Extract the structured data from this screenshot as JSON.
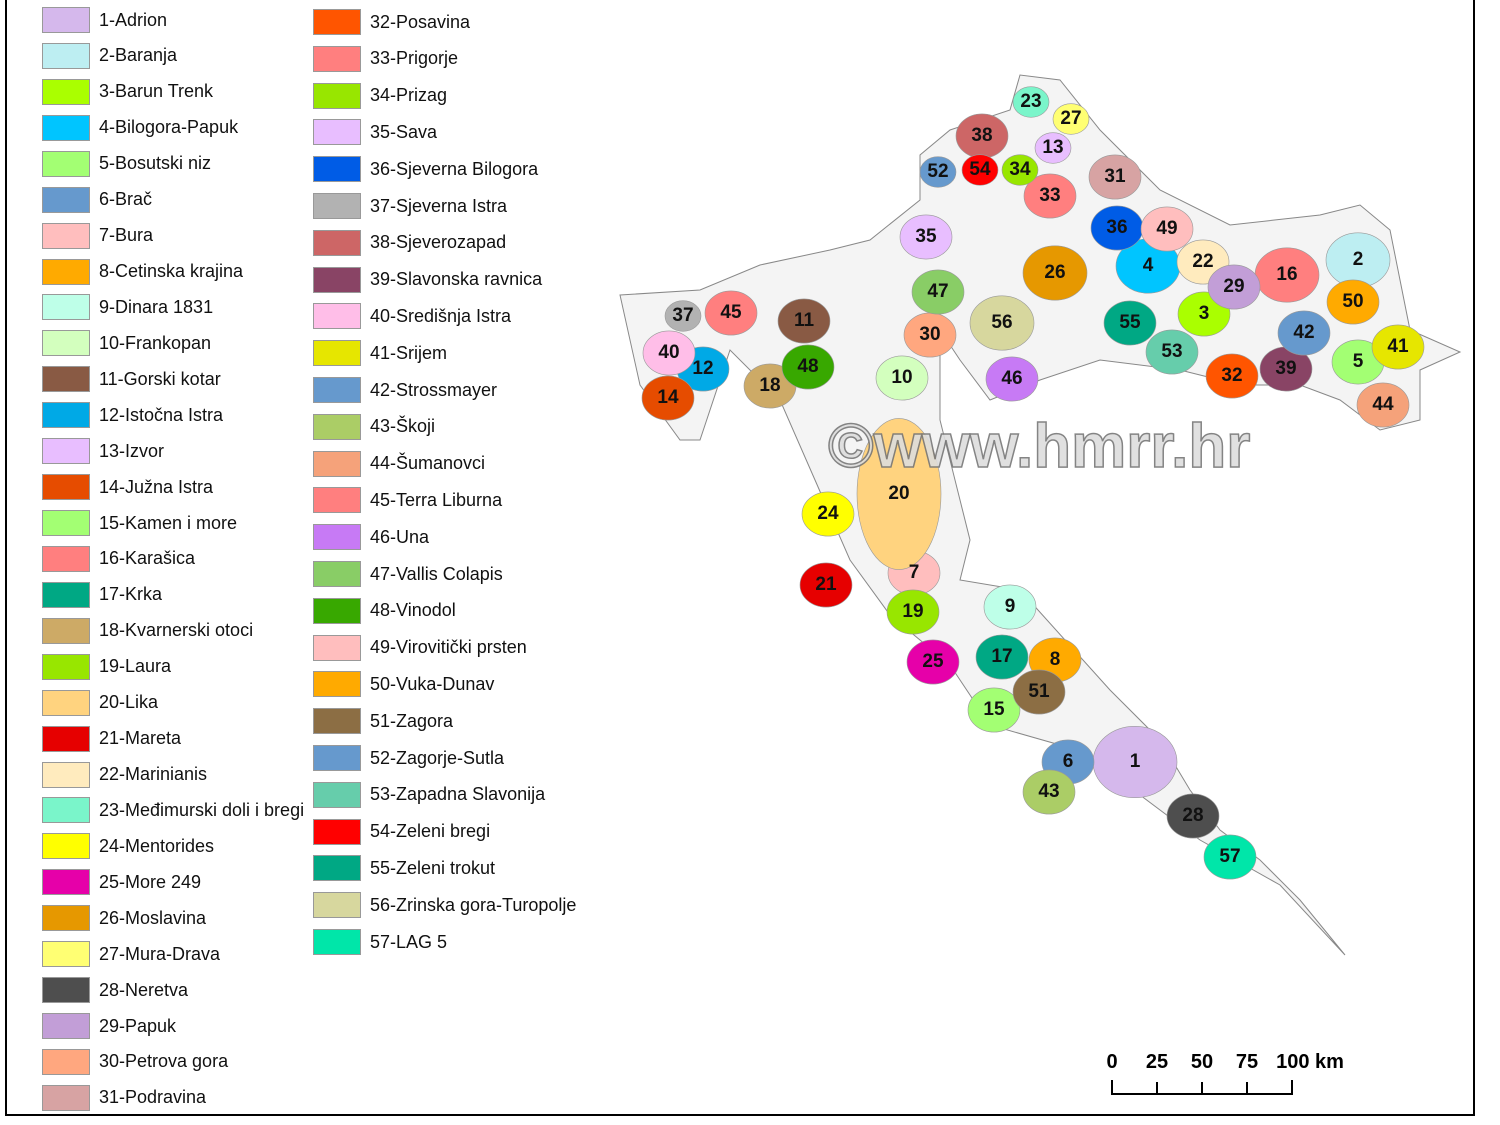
{
  "legend": [
    {
      "label": "1-Adrion",
      "color": "#d5b8ec"
    },
    {
      "label": "2-Baranja",
      "color": "#bdeef2"
    },
    {
      "label": "3-Barun Trenk",
      "color": "#aaff00"
    },
    {
      "label": "4-Bilogora-Papuk",
      "color": "#00c5ff"
    },
    {
      "label": "5-Bosutski niz",
      "color": "#a3ff73"
    },
    {
      "label": "6-Brač",
      "color": "#6699cd"
    },
    {
      "label": "7-Bura",
      "color": "#ffbebe"
    },
    {
      "label": "8-Cetinska krajina",
      "color": "#ffaa00"
    },
    {
      "label": "9-Dinara 1831",
      "color": "#beffe8"
    },
    {
      "label": "10-Frankopan",
      "color": "#d3ffbe"
    },
    {
      "label": "11-Gorski kotar",
      "color": "#895a44"
    },
    {
      "label": "12-Istočna Istra",
      "color": "#00a9e6"
    },
    {
      "label": "13-Izvor",
      "color": "#e8beff"
    },
    {
      "label": "14-Južna Istra",
      "color": "#e64c00"
    },
    {
      "label": "15-Kamen i more",
      "color": "#a3ff73"
    },
    {
      "label": "16-Karašica",
      "color": "#ff7f7f"
    },
    {
      "label": "17-Krka",
      "color": "#00a884"
    },
    {
      "label": "18-Kvarnerski otoci",
      "color": "#cdaa66"
    },
    {
      "label": "19-Laura",
      "color": "#98e600"
    },
    {
      "label": "20-Lika",
      "color": "#ffd37f"
    },
    {
      "label": "21-Mareta",
      "color": "#e60000"
    },
    {
      "label": "22-Marinianis",
      "color": "#ffebbe"
    },
    {
      "label": "23-Međimurski doli i bregi",
      "color": "#7af5ca"
    },
    {
      "label": "24-Mentorides",
      "color": "#ffff00"
    },
    {
      "label": "25-More 249",
      "color": "#e600a9"
    },
    {
      "label": "26-Moslavina",
      "color": "#e69800"
    },
    {
      "label": "27-Mura-Drava",
      "color": "#ffff73"
    },
    {
      "label": "28-Neretva",
      "color": "#4e4e4e"
    },
    {
      "label": "29-Papuk",
      "color": "#c29ed7"
    },
    {
      "label": "30-Petrova gora",
      "color": "#ffa77f"
    },
    {
      "label": "31-Podravina",
      "color": "#d7a3a3"
    },
    {
      "label": "32-Posavina",
      "color": "#ff5500"
    },
    {
      "label": "33-Prigorje",
      "color": "#ff7f7f"
    },
    {
      "label": "34-Prizag",
      "color": "#98e600"
    },
    {
      "label": "35-Sava",
      "color": "#e8beff"
    },
    {
      "label": "36-Sjeverna Bilogora",
      "color": "#005ce6"
    },
    {
      "label": "37-Sjeverna Istra",
      "color": "#b2b2b2"
    },
    {
      "label": "38-Sjeverozapad",
      "color": "#cd6666"
    },
    {
      "label": "39-Slavonska ravnica",
      "color": "#894465"
    },
    {
      "label": "40-Središnja Istra",
      "color": "#ffbee8"
    },
    {
      "label": "41-Srijem",
      "color": "#e6e600"
    },
    {
      "label": "42-Strossmayer",
      "color": "#6699cd"
    },
    {
      "label": "43-Škoji",
      "color": "#abcd66"
    },
    {
      "label": "44-Šumanovci",
      "color": "#f5a27a"
    },
    {
      "label": "45-Terra Liburna",
      "color": "#ff7f7f"
    },
    {
      "label": "46-Una",
      "color": "#c77af5"
    },
    {
      "label": "47-Vallis Colapis",
      "color": "#89cd66"
    },
    {
      "label": "48-Vinodol",
      "color": "#38a800"
    },
    {
      "label": "49-Virovitički prsten",
      "color": "#ffbebe"
    },
    {
      "label": "50-Vuka-Dunav",
      "color": "#ffaa00"
    },
    {
      "label": "51-Zagora",
      "color": "#8c6e44"
    },
    {
      "label": "52-Zagorje-Sutla",
      "color": "#6699cd"
    },
    {
      "label": "53-Zapadna Slavonija",
      "color": "#66cdab"
    },
    {
      "label": "54-Zeleni bregi",
      "color": "#ff0000"
    },
    {
      "label": "55-Zeleni trokut",
      "color": "#00a884"
    },
    {
      "label": "56-Zrinska gora-Turopolje",
      "color": "#d7d79e"
    },
    {
      "label": "57-LAG 5",
      "color": "#00e6a9"
    }
  ],
  "map_labels": [
    "1",
    "2",
    "3",
    "4",
    "5",
    "6",
    "7",
    "8",
    "9",
    "10",
    "11",
    "12",
    "13",
    "14",
    "15",
    "16",
    "17",
    "18",
    "19",
    "20",
    "21",
    "22",
    "23",
    "24",
    "25",
    "26",
    "27",
    "28",
    "29",
    "30",
    "31",
    "32",
    "33",
    "34",
    "35",
    "36",
    "37",
    "38",
    "39",
    "40",
    "41",
    "42",
    "43",
    "44",
    "45",
    "46",
    "47",
    "48",
    "49",
    "50",
    "51",
    "52",
    "53",
    "54",
    "55",
    "56",
    "57"
  ],
  "watermark": "©www.hmrr.hr",
  "scale": {
    "ticks": [
      "0",
      "25",
      "50",
      "75",
      "100 km"
    ]
  }
}
